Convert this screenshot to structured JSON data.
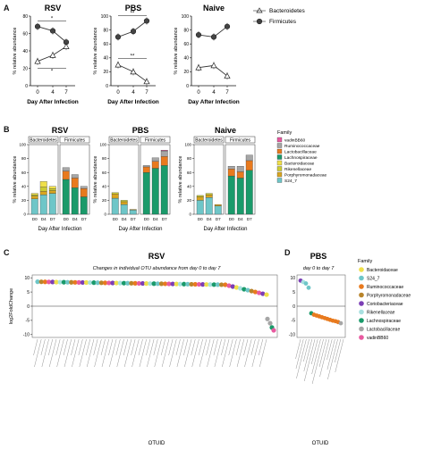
{
  "panels": {
    "A": "A",
    "B": "B",
    "C": "C",
    "D": "D"
  },
  "colors": {
    "bacteroidetes_marker": "#ffffff",
    "firmicutes_marker": "#444444",
    "S24_7": "#6ec6c8",
    "Porphyromonadaceae": "#d9a520",
    "Rikenellaceae": "#cccc33",
    "Bacteroidaceae": "#f0e04a",
    "Lachnospiraceae": "#1a9a6a",
    "Lactobacillaceae": "#e87a1e",
    "Ruminococcaceae": "#a6a6a6",
    "vadinBB60": "#e85aa0"
  },
  "panelA": {
    "legend": {
      "bacteroidetes": "Bacteroidetes",
      "firmicutes": "Firmicutes"
    },
    "ylabel": "% relative abundance",
    "xlabel": "Day After Infection",
    "charts": [
      {
        "title": "RSV",
        "ticks_x": [
          "0",
          "4",
          "7"
        ],
        "ticks_y": [
          "0",
          "20",
          "40",
          "60",
          "80"
        ],
        "ylim": [
          0,
          80
        ],
        "firmicutes": [
          68,
          63,
          50
        ],
        "bacteroidetes": [
          28,
          35,
          45
        ],
        "sig_top": "*",
        "sig_bottom": "*"
      },
      {
        "title": "PBS",
        "ticks_x": [
          "0",
          "4",
          "7"
        ],
        "ticks_y": [
          "0",
          "20",
          "40",
          "60",
          "80",
          "100"
        ],
        "ylim": [
          0,
          100
        ],
        "firmicutes": [
          70,
          78,
          93
        ],
        "bacteroidetes": [
          30,
          20,
          6
        ],
        "sig_top": "**",
        "sig_bottom": "**"
      },
      {
        "title": "Naive",
        "ticks_x": [
          "0",
          "4",
          "7"
        ],
        "ticks_y": [
          "0",
          "20",
          "40",
          "60",
          "80",
          "100"
        ],
        "ylim": [
          0,
          100
        ],
        "firmicutes": [
          73,
          70,
          85
        ],
        "bacteroidetes": [
          26,
          29,
          14
        ],
        "sig_top": "",
        "sig_bottom": ""
      }
    ]
  },
  "panelB": {
    "ylabel": "% relative abundance",
    "xlabel": "Day After Infection",
    "group_labels": [
      "Bacteroidetes",
      "Firmicutes"
    ],
    "xticks": [
      "D0",
      "D4",
      "D7"
    ],
    "legend_title": "Family",
    "legend": [
      "vadinBB60",
      "Ruminococcaceae",
      "Lactobacillaceae",
      "Lachnospiraceae",
      "Bacteroidaceae",
      "Rikenellaceae",
      "Porphyromonadaceae",
      "S24_7"
    ],
    "charts": [
      {
        "title": "RSV",
        "ticks_y": [
          "0",
          "20",
          "40",
          "60",
          "80",
          "100"
        ],
        "bacteroidetes": [
          {
            "S24_7": 22,
            "Porphyromonadaceae": 4,
            "Rikenellaceae": 2,
            "Bacteroidaceae": 2
          },
          {
            "S24_7": 28,
            "Porphyromonadaceae": 5,
            "Rikenellaceae": 6,
            "Bacteroidaceae": 8
          },
          {
            "S24_7": 30,
            "Porphyromonadaceae": 4,
            "Rikenellaceae": 3,
            "Bacteroidaceae": 3
          }
        ],
        "firmicutes": [
          {
            "Lachnospiraceae": 50,
            "Lactobacillaceae": 12,
            "Ruminococcaceae": 5
          },
          {
            "Lachnospiraceae": 38,
            "Lactobacillaceae": 14,
            "Ruminococcaceae": 5
          },
          {
            "Lachnospiraceae": 25,
            "Lactobacillaceae": 12,
            "Ruminococcaceae": 3
          }
        ]
      },
      {
        "title": "PBS",
        "ticks_y": [
          "0",
          "20",
          "40",
          "60",
          "80",
          "100"
        ],
        "bacteroidetes": [
          {
            "S24_7": 23,
            "Porphyromonadaceae": 6,
            "Rikenellaceae": 2
          },
          {
            "S24_7": 14,
            "Porphyromonadaceae": 4,
            "Rikenellaceae": 2
          },
          {
            "S24_7": 6,
            "Porphyromonadaceae": 1
          }
        ],
        "firmicutes": [
          {
            "Lachnospiraceae": 60,
            "Lactobacillaceae": 8,
            "Ruminococcaceae": 2
          },
          {
            "Lachnospiraceae": 66,
            "Lactobacillaceae": 10,
            "Ruminococcaceae": 5
          },
          {
            "Lachnospiraceae": 70,
            "Lactobacillaceae": 13,
            "Ruminococcaceae": 8,
            "vadinBB60": 1
          }
        ]
      },
      {
        "title": "Naive",
        "ticks_y": [
          "0",
          "20",
          "40",
          "60",
          "80",
          "100"
        ],
        "bacteroidetes": [
          {
            "S24_7": 20,
            "Porphyromonadaceae": 5,
            "Rikenellaceae": 2
          },
          {
            "S24_7": 24,
            "Porphyromonadaceae": 4,
            "Rikenellaceae": 2
          },
          {
            "S24_7": 12,
            "Porphyromonadaceae": 2
          }
        ],
        "firmicutes": [
          {
            "Lachnospiraceae": 55,
            "Lactobacillaceae": 10,
            "Ruminococcaceae": 4
          },
          {
            "Lachnospiraceae": 52,
            "Lactobacillaceae": 9,
            "Ruminococcaceae": 8
          },
          {
            "Lachnospiraceae": 63,
            "Lactobacillaceae": 14,
            "Ruminococcaceae": 8
          }
        ]
      }
    ]
  },
  "panelC": {
    "title": "RSV",
    "subtitle": "Changes in individual OTU abundance from day 0 to day 7",
    "ylabel": "log2FoldChange",
    "xlabel": "OTUID",
    "ticks_y": [
      "10",
      "5",
      "0",
      "-5",
      "-10"
    ]
  },
  "panelD": {
    "title": "PBS",
    "subtitle": "day 0 to day 7",
    "xlabel": "OTUID",
    "ticks_y": [
      "10",
      "5",
      "0",
      "-5",
      "-10"
    ],
    "legend_title": "Family",
    "legend": [
      "Bacteroidaceae",
      "S24_7",
      "Ruminococcaceae",
      "Porphyromonadaceae",
      "Coriobacteriaceae",
      "Rikenellaceae",
      "Lachnospiraceae",
      "Lactobacillaceae",
      "vadinBB60"
    ],
    "legend_colors": [
      "#f0e04a",
      "#6ec6c8",
      "#e87a1e",
      "#b8842a",
      "#7b3fb5",
      "#a8e0e0",
      "#1a9a6a",
      "#a6a6a6",
      "#e85aa0"
    ]
  },
  "chart_data": [
    {
      "type": "line",
      "title": "RSV",
      "x": [
        0,
        4,
        7
      ],
      "series": [
        {
          "name": "Firmicutes",
          "values": [
            68,
            63,
            50
          ]
        },
        {
          "name": "Bacteroidetes",
          "values": [
            28,
            35,
            45
          ]
        }
      ],
      "xlabel": "Day After Infection",
      "ylabel": "% relative abundance",
      "ylim": [
        0,
        80
      ]
    },
    {
      "type": "line",
      "title": "PBS",
      "x": [
        0,
        4,
        7
      ],
      "series": [
        {
          "name": "Firmicutes",
          "values": [
            70,
            78,
            93
          ]
        },
        {
          "name": "Bacteroidetes",
          "values": [
            30,
            20,
            6
          ]
        }
      ],
      "xlabel": "Day After Infection",
      "ylabel": "% relative abundance",
      "ylim": [
        0,
        100
      ]
    },
    {
      "type": "line",
      "title": "Naive",
      "x": [
        0,
        4,
        7
      ],
      "series": [
        {
          "name": "Firmicutes",
          "values": [
            73,
            70,
            85
          ]
        },
        {
          "name": "Bacteroidetes",
          "values": [
            26,
            29,
            14
          ]
        }
      ],
      "xlabel": "Day After Infection",
      "ylabel": "% relative abundance",
      "ylim": [
        0,
        100
      ]
    }
  ]
}
